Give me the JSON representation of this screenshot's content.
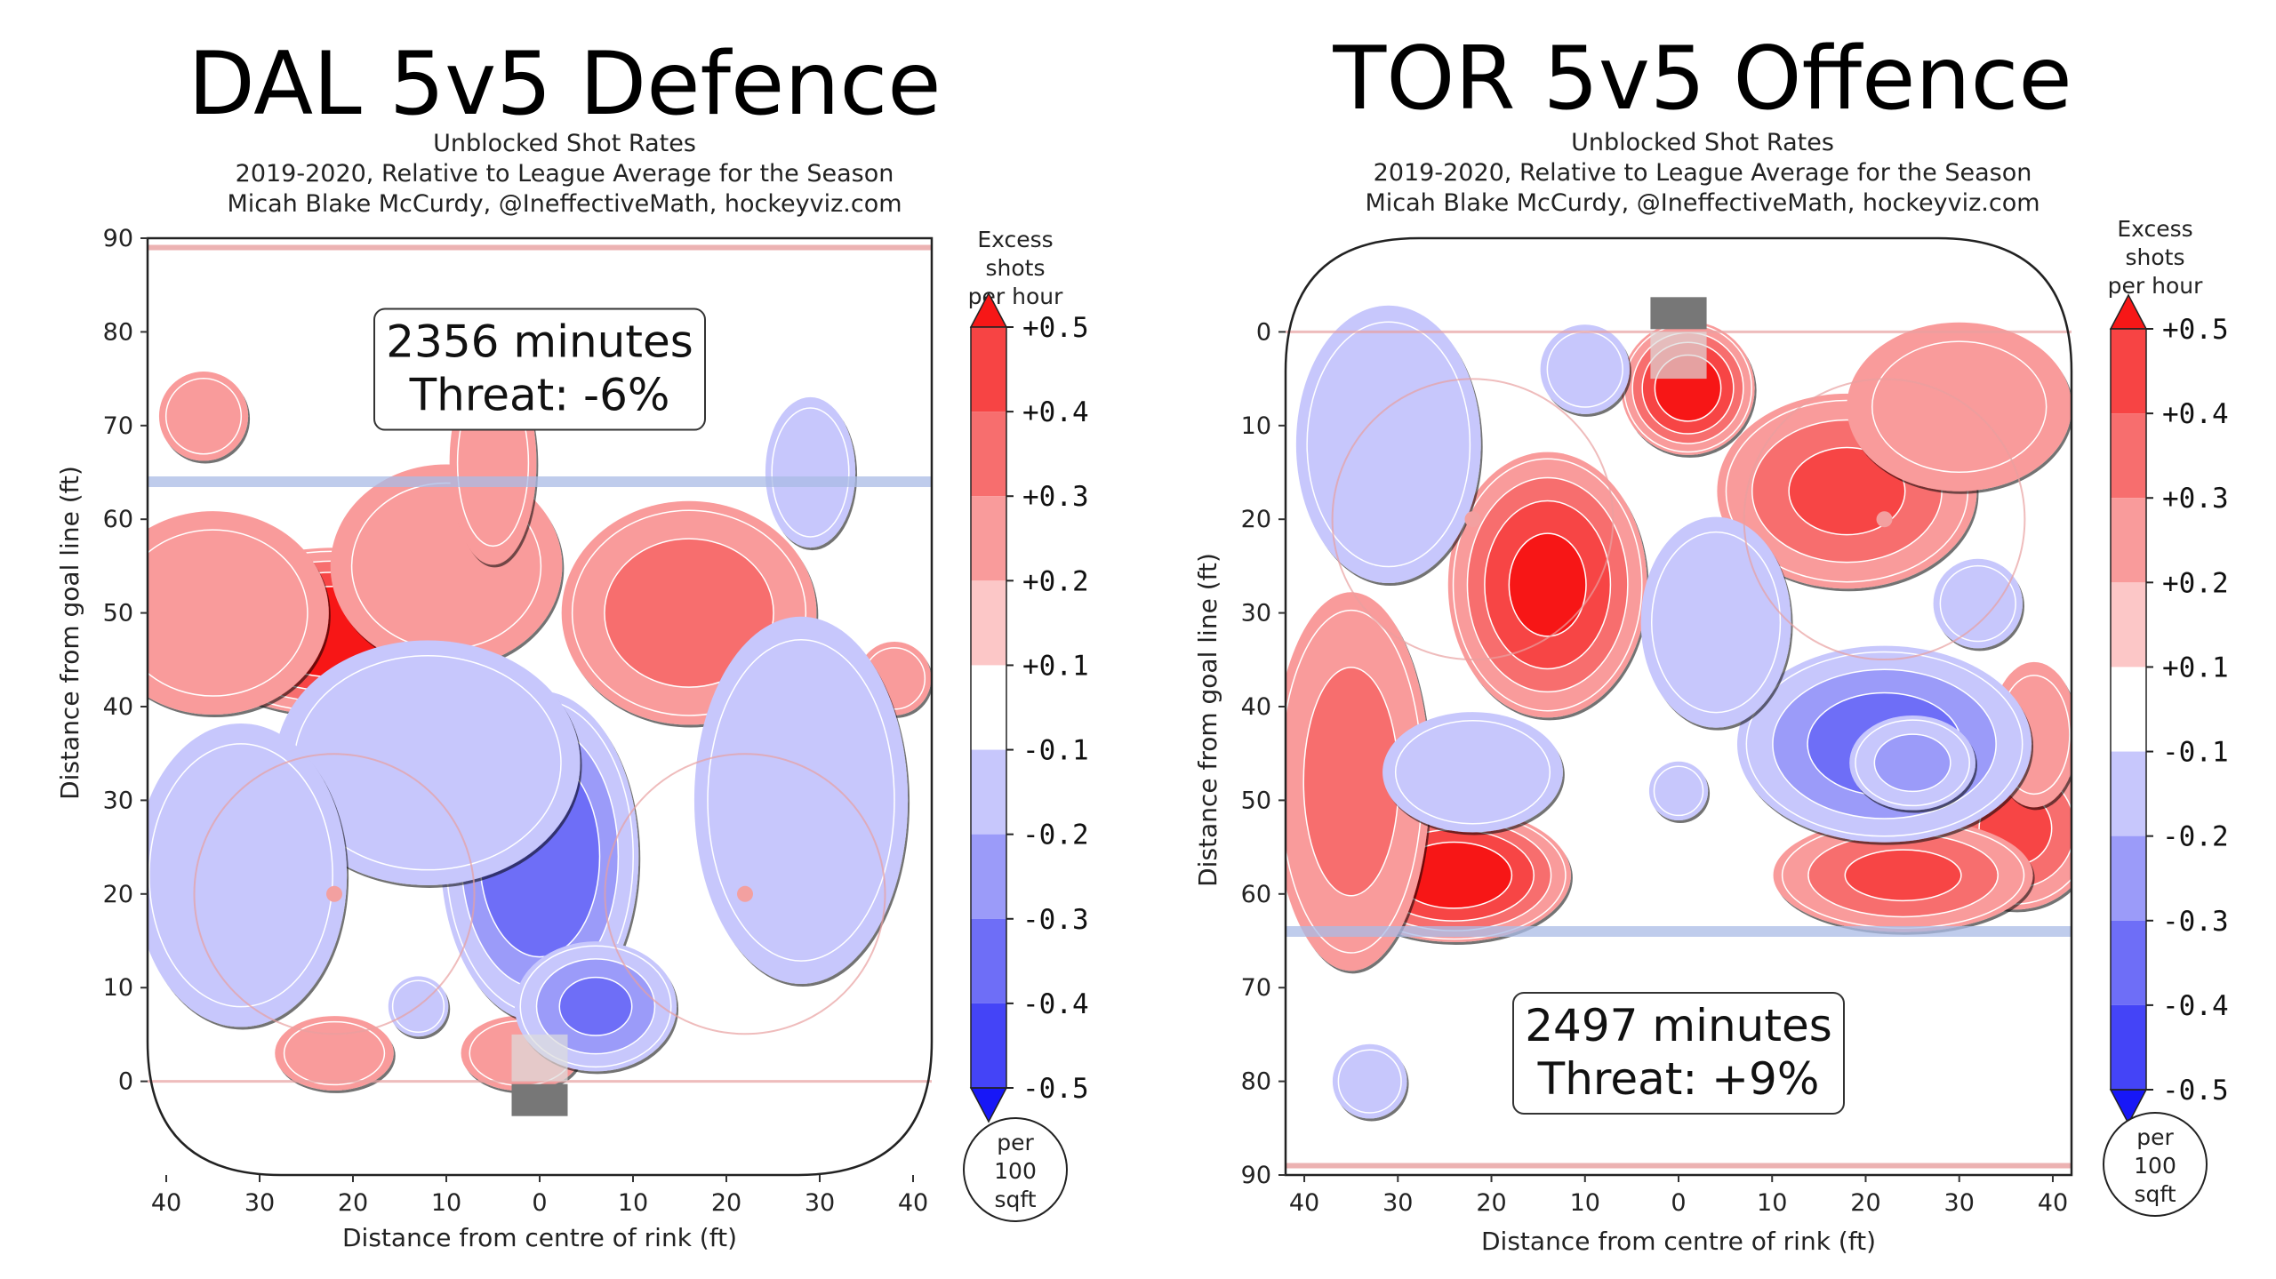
{
  "chart_data": [
    {
      "type": "heatmap",
      "title": "DAL 5v5 Defence",
      "subtitle_lines": [
        "Unblocked Shot Rates",
        "2019-2020, Relative to League Average for the Season",
        "Micah Blake McCurdy, @IneffectiveMath, hockeyviz.com"
      ],
      "xlabel": "Distance from centre of rink (ft)",
      "ylabel": "Distance from goal line (ft)",
      "xlim": [
        -42,
        42
      ],
      "ylim": [
        -10,
        90
      ],
      "y_inverted": false,
      "x_ticks": [
        {
          "v": -40,
          "label": "40"
        },
        {
          "v": -30,
          "label": "30"
        },
        {
          "v": -20,
          "label": "20"
        },
        {
          "v": -10,
          "label": "10"
        },
        {
          "v": 0,
          "label": "0"
        },
        {
          "v": 10,
          "label": "10"
        },
        {
          "v": 20,
          "label": "20"
        },
        {
          "v": 30,
          "label": "30"
        },
        {
          "v": 40,
          "label": "40"
        }
      ],
      "y_ticks": [
        {
          "v": 0,
          "label": "0"
        },
        {
          "v": 10,
          "label": "10"
        },
        {
          "v": 20,
          "label": "20"
        },
        {
          "v": 30,
          "label": "30"
        },
        {
          "v": 40,
          "label": "40"
        },
        {
          "v": 50,
          "label": "50"
        },
        {
          "v": 60,
          "label": "60"
        },
        {
          "v": 70,
          "label": "70"
        },
        {
          "v": 80,
          "label": "80"
        },
        {
          "v": 90,
          "label": "90"
        }
      ],
      "annotation_lines": [
        "2356 minutes",
        "Threat: -6%"
      ],
      "annotation_pos": [
        0,
        76
      ],
      "blue_line_y": 64,
      "red_line_y": 89,
      "goal_line_y": 0,
      "goal_y": -2,
      "goal_end": "bottom",
      "faceoff_circles": [
        {
          "x": -22,
          "y": 20
        },
        {
          "x": 22,
          "y": 20
        }
      ],
      "hotspots": [
        {
          "x": -22,
          "y": 48,
          "sx": 9,
          "sy": 5,
          "v": 0.48
        },
        {
          "x": -35,
          "y": 50,
          "sx": 8,
          "sy": 7,
          "v": 0.12
        },
        {
          "x": -10,
          "y": 55,
          "sx": 8,
          "sy": 7,
          "v": 0.12
        },
        {
          "x": -5,
          "y": 66,
          "sx": 3,
          "sy": 7,
          "v": 0.12
        },
        {
          "x": -36,
          "y": 71,
          "sx": 3,
          "sy": 3,
          "v": 0.14
        },
        {
          "x": 16,
          "y": 50,
          "sx": 8,
          "sy": 7,
          "v": 0.25
        },
        {
          "x": 38,
          "y": 43,
          "sx": 2.5,
          "sy": 2.5,
          "v": 0.13
        },
        {
          "x": -22,
          "y": 3,
          "sx": 4,
          "sy": 2.5,
          "v": 0.14
        },
        {
          "x": -2,
          "y": 3,
          "sx": 4,
          "sy": 2.5,
          "v": 0.15
        },
        {
          "x": 0,
          "y": 24,
          "sx": 6,
          "sy": 10,
          "v": -0.38
        },
        {
          "x": 6,
          "y": 8,
          "sx": 5,
          "sy": 4,
          "v": -0.3
        },
        {
          "x": -12,
          "y": 34,
          "sx": 10,
          "sy": 8,
          "v": -0.17
        },
        {
          "x": -32,
          "y": 22,
          "sx": 7,
          "sy": 10,
          "v": -0.16
        },
        {
          "x": 28,
          "y": 30,
          "sx": 7,
          "sy": 12,
          "v": -0.17
        },
        {
          "x": 29,
          "y": 65,
          "sx": 3,
          "sy": 5,
          "v": -0.15
        },
        {
          "x": -13,
          "y": 8,
          "sx": 2,
          "sy": 2,
          "v": -0.15
        }
      ]
    },
    {
      "type": "heatmap",
      "title": "TOR 5v5 Offence",
      "subtitle_lines": [
        "Unblocked Shot Rates",
        "2019-2020, Relative to League Average for the Season",
        "Micah Blake McCurdy, @IneffectiveMath, hockeyviz.com"
      ],
      "xlabel": "Distance from centre of rink (ft)",
      "ylabel": "Distance from goal line (ft)",
      "xlim": [
        -42,
        42
      ],
      "ylim": [
        -10,
        90
      ],
      "y_inverted": true,
      "x_ticks": [
        {
          "v": -40,
          "label": "40"
        },
        {
          "v": -30,
          "label": "30"
        },
        {
          "v": -20,
          "label": "20"
        },
        {
          "v": -10,
          "label": "10"
        },
        {
          "v": 0,
          "label": "0"
        },
        {
          "v": 10,
          "label": "10"
        },
        {
          "v": 20,
          "label": "20"
        },
        {
          "v": 30,
          "label": "30"
        },
        {
          "v": 40,
          "label": "40"
        }
      ],
      "y_ticks": [
        {
          "v": 0,
          "label": "0"
        },
        {
          "v": 10,
          "label": "10"
        },
        {
          "v": 20,
          "label": "20"
        },
        {
          "v": 30,
          "label": "30"
        },
        {
          "v": 40,
          "label": "40"
        },
        {
          "v": 50,
          "label": "50"
        },
        {
          "v": 60,
          "label": "60"
        },
        {
          "v": 70,
          "label": "70"
        },
        {
          "v": 80,
          "label": "80"
        },
        {
          "v": 90,
          "label": "90"
        }
      ],
      "annotation_lines": [
        "2497 minutes",
        "Threat: +9%"
      ],
      "annotation_pos": [
        0,
        77
      ],
      "blue_line_y": 64,
      "red_line_y": 89,
      "goal_line_y": 0,
      "goal_y": -2,
      "goal_end": "top",
      "faceoff_circles": [
        {
          "x": -22,
          "y": 20
        },
        {
          "x": 22,
          "y": 20
        }
      ],
      "hotspots": [
        {
          "x": 1,
          "y": 6,
          "sx": 4,
          "sy": 4,
          "v": 0.45
        },
        {
          "x": 18,
          "y": 17,
          "sx": 8,
          "sy": 6,
          "v": 0.3
        },
        {
          "x": 30,
          "y": 8,
          "sx": 8,
          "sy": 6,
          "v": 0.1
        },
        {
          "x": -14,
          "y": 27,
          "sx": 6,
          "sy": 8,
          "v": 0.4
        },
        {
          "x": -24,
          "y": 58,
          "sx": 7,
          "sy": 4,
          "v": 0.45
        },
        {
          "x": -35,
          "y": 48,
          "sx": 5,
          "sy": 12,
          "v": 0.22
        },
        {
          "x": 36,
          "y": 53,
          "sx": 5,
          "sy": 5,
          "v": 0.3
        },
        {
          "x": 24,
          "y": 58,
          "sx": 8,
          "sy": 3.5,
          "v": 0.3
        },
        {
          "x": 38,
          "y": 43,
          "sx": 3,
          "sy": 5,
          "v": 0.12
        },
        {
          "x": 22,
          "y": 44,
          "sx": 9,
          "sy": 6,
          "v": -0.33
        },
        {
          "x": 25,
          "y": 46,
          "sx": 4,
          "sy": 3,
          "v": -0.22
        },
        {
          "x": 4,
          "y": 31,
          "sx": 5,
          "sy": 7,
          "v": -0.15
        },
        {
          "x": -22,
          "y": 47,
          "sx": 6,
          "sy": 4,
          "v": -0.15
        },
        {
          "x": -31,
          "y": 12,
          "sx": 6,
          "sy": 9,
          "v": -0.18
        },
        {
          "x": -10,
          "y": 4,
          "sx": 3,
          "sy": 3,
          "v": -0.14
        },
        {
          "x": -33,
          "y": 80,
          "sx": 2.5,
          "sy": 2.5,
          "v": -0.14
        },
        {
          "x": 32,
          "y": 29,
          "sx": 3,
          "sy": 3,
          "v": -0.14
        },
        {
          "x": 0,
          "y": 49,
          "sx": 2,
          "sy": 2,
          "v": -0.13
        }
      ]
    }
  ],
  "colorbar": {
    "title_lines": [
      "Excess",
      "shots",
      "per hour"
    ],
    "tick_labels": [
      "+0.5",
      "+0.4",
      "+0.3",
      "+0.2",
      "+0.1",
      "-0.1",
      "-0.2",
      "-0.3",
      "-0.4",
      "-0.5"
    ],
    "bands": [
      {
        "color": "#f71717"
      },
      {
        "color": "#f74444"
      },
      {
        "color": "#f76e6e"
      },
      {
        "color": "#f99b9b"
      },
      {
        "color": "#fcc7c7"
      },
      {
        "color": "#ffffff"
      },
      {
        "color": "#c7c7fc"
      },
      {
        "color": "#9b9bf9"
      },
      {
        "color": "#6e6ef7"
      },
      {
        "color": "#4444f7"
      },
      {
        "color": "#1717f7"
      }
    ],
    "unit_lines": [
      "per",
      "100",
      "sqft"
    ]
  },
  "colors": {
    "positive": "#e41a1c",
    "negative": "#2222f0",
    "blue_line": "#aabbe6",
    "red_line": "#e8a0a0",
    "goal": "#777777"
  }
}
